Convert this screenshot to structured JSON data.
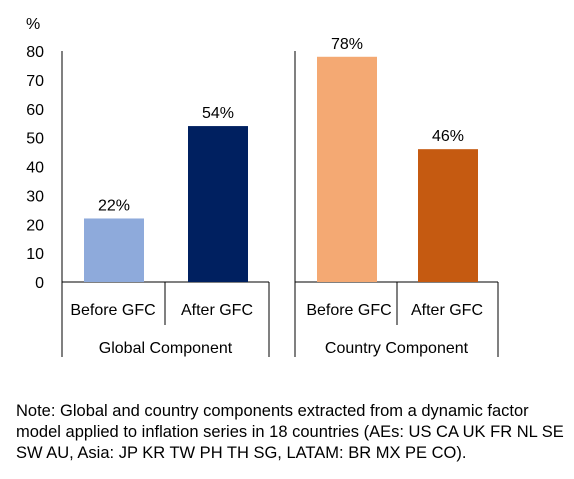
{
  "chart_data": {
    "type": "bar",
    "ylabel": "%",
    "ylim": [
      0,
      80
    ],
    "yticks": [
      0,
      10,
      20,
      30,
      40,
      50,
      60,
      70,
      80
    ],
    "groups": [
      {
        "name": "Global Component",
        "categories": [
          "Before GFC",
          "After GFC"
        ],
        "values": [
          22,
          54
        ],
        "labels": [
          "22%",
          "54%"
        ],
        "colors": [
          "#8eaadb",
          "#002060"
        ]
      },
      {
        "name": "Country Component",
        "categories": [
          "Before GFC",
          "After GFC"
        ],
        "values": [
          78,
          46
        ],
        "labels": [
          "78%",
          "46%"
        ],
        "colors": [
          "#f4a973",
          "#c55a11"
        ]
      }
    ],
    "grid": false,
    "legend": "none"
  },
  "note": "Note: Global and country components extracted from a dynamic factor model applied to inflation series in 18 countries (AEs: US CA UK FR NL SE SW AU, Asia: JP KR TW PH TH SG, LATAM: BR MX PE CO)."
}
